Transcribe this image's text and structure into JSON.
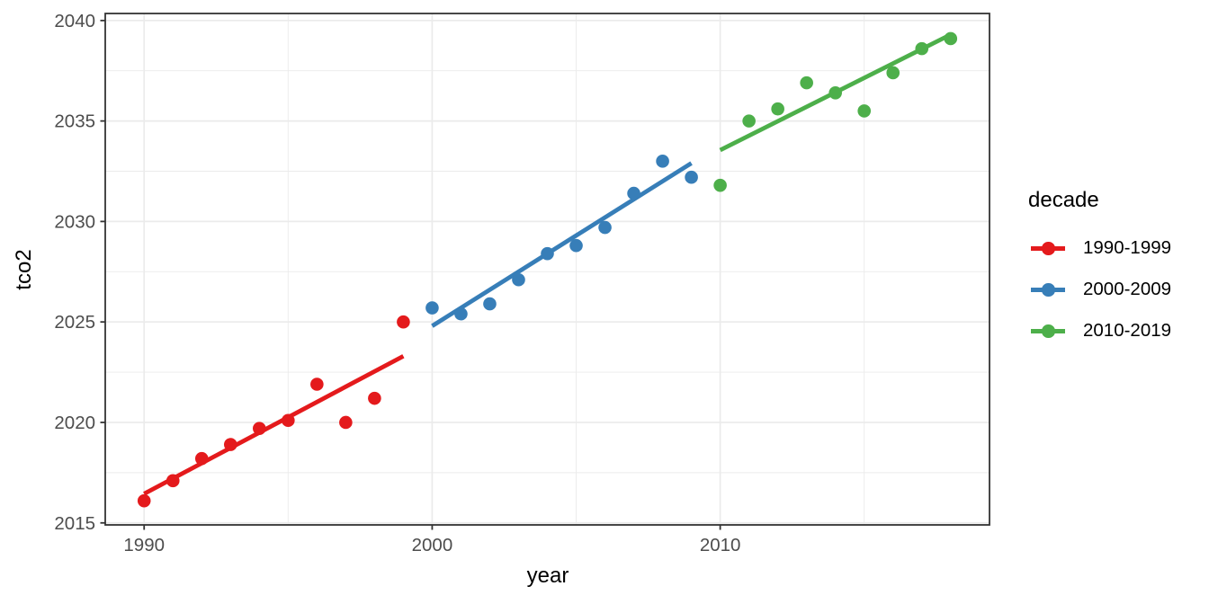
{
  "figure": {
    "background": "#ffffff"
  },
  "chart_data": {
    "type": "scatter",
    "title": "",
    "xlabel": "year",
    "ylabel": "tco2",
    "grid": true,
    "legend_position": "right",
    "legend_title": "decade",
    "xlim": [
      1988.65,
      2019.35
    ],
    "ylim": [
      2014.9,
      2040.35
    ],
    "x_ticks": [
      1990,
      2000,
      2010
    ],
    "x_minor_ticks": [
      1995,
      2005,
      2015
    ],
    "y_ticks": [
      2015,
      2020,
      2025,
      2030,
      2035,
      2040
    ],
    "y_minor_ticks": [
      2017.5,
      2022.5,
      2027.5,
      2032.5,
      2037.5
    ],
    "theme": {
      "panel_background": "#ffffff",
      "panel_border": "#333333",
      "grid_major": "#ebebeb",
      "grid_minor": "#ebebeb",
      "tick_mark": "#333333",
      "tick_label_color": "#4d4d4d",
      "text_color": "#000000"
    },
    "series": [
      {
        "name": "1990-1999",
        "color": "#E41A1C",
        "x": [
          1990,
          1991,
          1992,
          1993,
          1994,
          1995,
          1996,
          1997,
          1998,
          1999
        ],
        "y": [
          2016.1,
          2017.1,
          2018.2,
          2018.9,
          2019.7,
          2020.1,
          2021.9,
          2020.0,
          2021.2,
          2025.0
        ],
        "fit_line": {
          "x": [
            1990,
            1999
          ],
          "y": [
            2016.45,
            2023.3
          ]
        }
      },
      {
        "name": "2000-2009",
        "color": "#377EB8",
        "x": [
          2000,
          2001,
          2002,
          2003,
          2004,
          2005,
          2006,
          2007,
          2008,
          2009
        ],
        "y": [
          2025.7,
          2025.4,
          2025.9,
          2027.1,
          2028.4,
          2028.8,
          2029.7,
          2031.4,
          2033.0,
          2032.2
        ],
        "fit_line": {
          "x": [
            2000,
            2009
          ],
          "y": [
            2024.8,
            2032.9
          ]
        }
      },
      {
        "name": "2010-2019",
        "color": "#4DAF4A",
        "x": [
          2010,
          2011,
          2012,
          2013,
          2014,
          2015,
          2016,
          2017,
          2018
        ],
        "y": [
          2031.8,
          2035.0,
          2035.6,
          2036.9,
          2036.4,
          2035.5,
          2037.4,
          2038.6,
          2039.1
        ],
        "fit_line": {
          "x": [
            2010,
            2018
          ],
          "y": [
            2033.55,
            2039.3
          ]
        }
      }
    ]
  }
}
